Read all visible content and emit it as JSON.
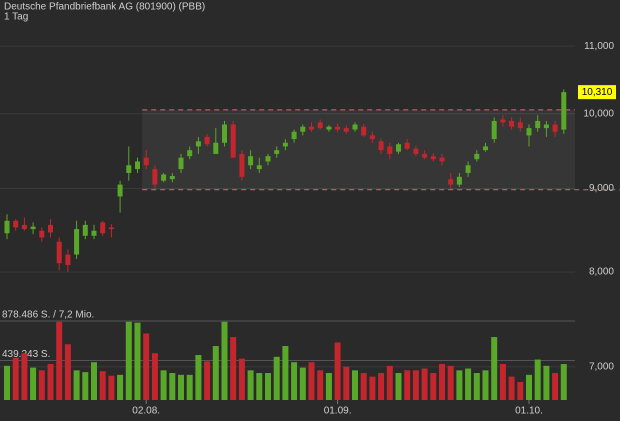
{
  "chart_data": {
    "type": "candlestick",
    "title": "Deutsche Pfandbriefbank AG (801900) (PBB)",
    "subtitle": "1 Tag",
    "log_scale": true,
    "grid": true,
    "up_color": "#5aa82a",
    "down_color": "#c4262e",
    "categories": [
      null,
      null,
      null,
      null,
      null,
      null,
      null,
      null,
      null,
      null,
      null,
      null,
      null,
      null,
      null,
      null,
      "02.08.",
      null,
      null,
      null,
      null,
      null,
      null,
      null,
      null,
      null,
      null,
      null,
      null,
      null,
      null,
      null,
      null,
      null,
      null,
      null,
      null,
      null,
      "01.09.",
      null,
      null,
      null,
      null,
      null,
      null,
      null,
      null,
      null,
      null,
      null,
      null,
      null,
      null,
      null,
      null,
      null,
      null,
      null,
      null,
      null,
      "01.10.",
      null,
      null,
      null,
      null
    ],
    "open": [
      8.45,
      8.6,
      8.55,
      8.5,
      8.48,
      8.55,
      8.35,
      8.2,
      8.2,
      8.42,
      8.42,
      8.58,
      8.52,
      8.9,
      9.2,
      9.25,
      9.4,
      9.25,
      9.1,
      9.12,
      9.25,
      9.42,
      9.55,
      9.68,
      9.45,
      9.6,
      9.85,
      9.45,
      9.3,
      9.25,
      9.35,
      9.45,
      9.55,
      9.65,
      9.75,
      9.82,
      9.88,
      9.78,
      9.82,
      9.8,
      9.78,
      9.82,
      9.7,
      9.62,
      9.55,
      9.48,
      9.6,
      9.52,
      9.45,
      9.42,
      9.4,
      9.12,
      9.05,
      9.2,
      9.38,
      9.5,
      9.65,
      9.92,
      9.9,
      9.88,
      9.7,
      9.8,
      9.8,
      9.85,
      9.78
    ],
    "high": [
      8.68,
      8.62,
      8.64,
      8.58,
      8.52,
      8.62,
      8.4,
      8.26,
      8.6,
      8.6,
      8.55,
      8.6,
      8.56,
      9.1,
      9.55,
      9.4,
      9.5,
      9.3,
      9.2,
      9.2,
      9.45,
      9.55,
      9.68,
      9.72,
      9.8,
      9.9,
      9.9,
      9.5,
      9.5,
      9.4,
      9.45,
      9.55,
      9.65,
      9.78,
      9.85,
      9.88,
      9.92,
      9.84,
      9.86,
      9.84,
      9.88,
      9.86,
      9.75,
      9.66,
      9.6,
      9.6,
      9.65,
      9.56,
      9.5,
      9.46,
      9.45,
      9.2,
      9.2,
      9.35,
      9.5,
      9.6,
      9.95,
      9.98,
      9.95,
      9.95,
      9.85,
      9.98,
      9.9,
      9.9,
      10.35
    ],
    "low": [
      8.38,
      8.48,
      8.48,
      8.44,
      8.35,
      8.4,
      8.02,
      8.0,
      8.15,
      8.38,
      8.38,
      8.42,
      8.4,
      8.7,
      9.1,
      9.2,
      9.25,
      9.0,
      9.08,
      9.08,
      9.2,
      9.38,
      9.45,
      9.55,
      9.45,
      9.55,
      9.4,
      9.1,
      9.25,
      9.2,
      9.3,
      9.4,
      9.5,
      9.6,
      9.7,
      9.75,
      9.78,
      9.75,
      9.75,
      9.72,
      9.75,
      9.68,
      9.6,
      9.45,
      9.38,
      9.45,
      9.5,
      9.42,
      9.38,
      9.35,
      9.3,
      9.0,
      9.02,
      9.15,
      9.35,
      9.48,
      9.6,
      9.82,
      9.78,
      9.75,
      9.55,
      9.75,
      9.68,
      9.68,
      9.72
    ],
    "close": [
      8.6,
      8.52,
      8.5,
      8.53,
      8.4,
      8.46,
      8.1,
      8.08,
      8.5,
      8.55,
      8.48,
      8.45,
      8.5,
      9.05,
      9.3,
      9.35,
      9.3,
      9.05,
      9.18,
      9.16,
      9.4,
      9.5,
      9.62,
      9.58,
      9.6,
      9.85,
      9.4,
      9.15,
      9.42,
      9.3,
      9.42,
      9.5,
      9.6,
      9.75,
      9.82,
      9.78,
      9.8,
      9.82,
      9.78,
      9.75,
      9.85,
      9.7,
      9.65,
      9.5,
      9.45,
      9.58,
      9.52,
      9.45,
      9.4,
      9.38,
      9.35,
      9.05,
      9.15,
      9.3,
      9.45,
      9.55,
      9.9,
      9.88,
      9.82,
      9.8,
      9.8,
      9.9,
      9.85,
      9.75,
      10.31
    ],
    "volume": [
      380000,
      470000,
      520000,
      360000,
      330000,
      400000,
      870000,
      620000,
      330000,
      310000,
      420000,
      320000,
      270000,
      280000,
      870000,
      860000,
      740000,
      520000,
      330000,
      300000,
      280000,
      280000,
      500000,
      430000,
      600000,
      870000,
      700000,
      460000,
      330000,
      300000,
      300000,
      480000,
      600000,
      420000,
      360000,
      420000,
      330000,
      300000,
      640000,
      370000,
      330000,
      300000,
      260000,
      300000,
      380000,
      300000,
      330000,
      330000,
      350000,
      300000,
      400000,
      380000,
      330000,
      350000,
      300000,
      330000,
      700000,
      400000,
      260000,
      200000,
      280000,
      450000,
      380000,
      300000,
      400000
    ],
    "ylim": [
      6.68,
      11.74
    ],
    "yticks": [
      {
        "value": 7,
        "label": "7,000"
      },
      {
        "value": 8,
        "label": "8,000"
      },
      {
        "value": 9,
        "label": "9,000"
      },
      {
        "value": 10,
        "label": "10,000"
      },
      {
        "value": 11,
        "label": "11,000"
      }
    ],
    "volume_lim": [
      0,
      878486
    ],
    "volume_ticks": [
      {
        "value": 439243,
        "label": "439.243 S."
      },
      {
        "value": 878486,
        "label": "878.486 S. / 7,2 Mio."
      }
    ],
    "last_price": {
      "value": 10.31,
      "label": "10,310"
    },
    "channel": {
      "from": 16,
      "upper": 10.056,
      "lower": 8.985,
      "color": "#e06080"
    }
  }
}
